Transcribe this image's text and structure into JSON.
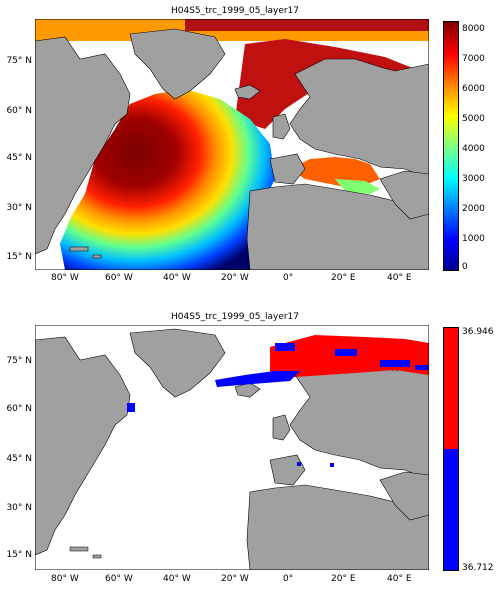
{
  "panels": [
    {
      "title": "H04S5_trc_1999_05_layer17",
      "colorbar": {
        "type": "continuous-jet",
        "ticks": [
          "8000",
          "7000",
          "6000",
          "5000",
          "4000",
          "3000",
          "2000",
          "1000",
          "0"
        ],
        "min": 0,
        "max": 8000
      },
      "lat_labels": [
        "75° N",
        "60° N",
        "45° N",
        "30° N",
        "15° N"
      ],
      "lon_labels": [
        "80° W",
        "60° W",
        "40° W",
        "20° W",
        "0°",
        "20° E",
        "40° E"
      ]
    },
    {
      "title": "H04S5_trc_1999_05_layer17",
      "colorbar": {
        "type": "two-color",
        "top_label": "36.946",
        "bottom_label": "36.712",
        "colors": [
          "#ff0000",
          "#0000ff"
        ]
      },
      "lat_labels": [
        "75° N",
        "60° N",
        "45° N",
        "30° N",
        "15° N"
      ],
      "lon_labels": [
        "80° W",
        "60° W",
        "40° W",
        "20° W",
        "0°",
        "20° E",
        "40° E"
      ]
    }
  ],
  "colors": {
    "land": "#a0a0a0",
    "ocean_missing": "#ffffff"
  }
}
